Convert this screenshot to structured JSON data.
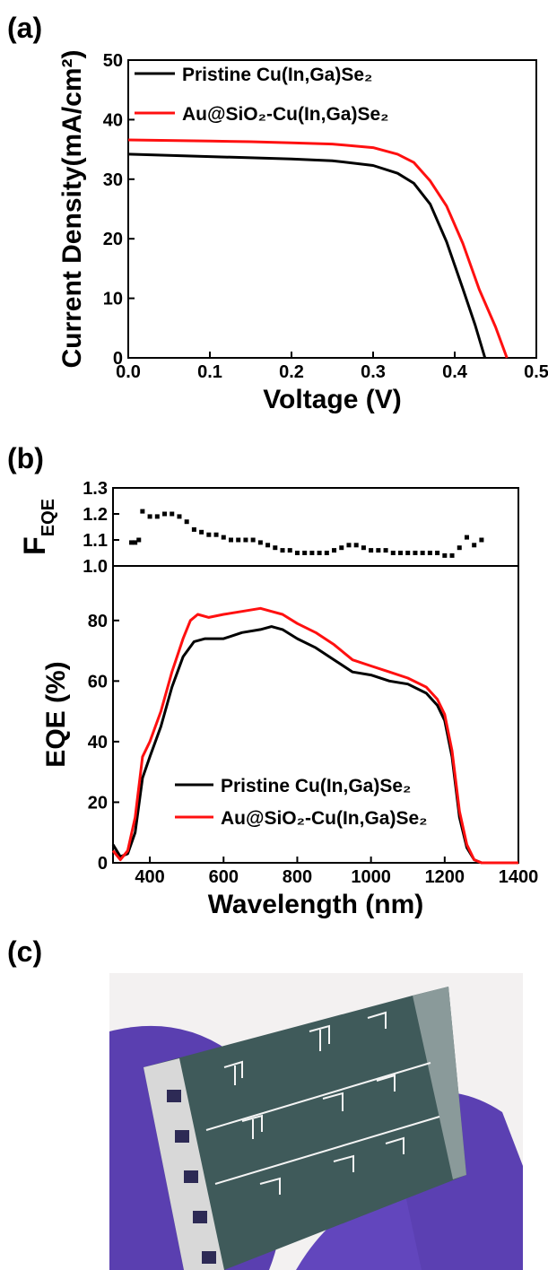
{
  "chart_data": [
    {
      "type": "line",
      "label": "(a)",
      "xlabel": "Voltage (V)",
      "ylabel": "Current Density(mA/cm²)",
      "xlim": [
        0,
        0.5
      ],
      "xticks": [
        {
          "value": 0,
          "label": "0.0"
        },
        0.1,
        0.2,
        0.3,
        0.4,
        0.5
      ],
      "ylim": [
        0,
        50
      ],
      "yticks": [
        0,
        10,
        20,
        30,
        40,
        50
      ],
      "series": [
        {
          "name": "Pristine Cu(In,Ga)Se₂",
          "color": "#000000",
          "x": [
            0,
            0.05,
            0.1,
            0.15,
            0.2,
            0.25,
            0.3,
            0.33,
            0.35,
            0.37,
            0.39,
            0.41,
            0.425,
            0.437
          ],
          "values": [
            34.2,
            34.0,
            33.8,
            33.6,
            33.4,
            33.1,
            32.3,
            31.0,
            29.3,
            25.8,
            19.5,
            11.6,
            5.5,
            0
          ]
        },
        {
          "name": "Au@SiO₂-Cu(In,Ga)Se₂",
          "color": "#ff1010",
          "x": [
            0,
            0.05,
            0.1,
            0.15,
            0.2,
            0.25,
            0.3,
            0.33,
            0.35,
            0.37,
            0.39,
            0.41,
            0.43,
            0.45,
            0.464
          ],
          "values": [
            36.6,
            36.5,
            36.4,
            36.3,
            36.1,
            35.9,
            35.3,
            34.2,
            32.8,
            29.7,
            25.5,
            19.2,
            11.5,
            5.2,
            0
          ]
        }
      ]
    },
    {
      "type": "scatter",
      "label": "(b)",
      "ylabel": "F",
      "ylabel_sub": "EQE",
      "xlim": [
        300,
        1400
      ],
      "ylim": [
        1,
        1.3
      ],
      "yticks": [
        {
          "value": 1,
          "label": "1.0"
        },
        1.1,
        1.2,
        1.3
      ],
      "color": "#000000",
      "x": [
        350,
        360,
        370,
        380,
        400,
        420,
        440,
        460,
        480,
        500,
        520,
        540,
        560,
        580,
        600,
        620,
        640,
        660,
        680,
        700,
        720,
        740,
        760,
        780,
        800,
        820,
        840,
        860,
        880,
        900,
        920,
        940,
        960,
        980,
        1000,
        1020,
        1040,
        1060,
        1080,
        1100,
        1120,
        1140,
        1160,
        1180,
        1200,
        1220,
        1240,
        1260,
        1280,
        1300
      ],
      "values": [
        1.09,
        1.09,
        1.1,
        1.21,
        1.19,
        1.19,
        1.2,
        1.2,
        1.19,
        1.17,
        1.14,
        1.13,
        1.12,
        1.12,
        1.11,
        1.1,
        1.1,
        1.1,
        1.1,
        1.09,
        1.08,
        1.07,
        1.06,
        1.06,
        1.05,
        1.05,
        1.05,
        1.05,
        1.05,
        1.06,
        1.07,
        1.08,
        1.08,
        1.07,
        1.06,
        1.06,
        1.06,
        1.05,
        1.05,
        1.05,
        1.05,
        1.05,
        1.05,
        1.05,
        1.04,
        1.04,
        1.07,
        1.11,
        1.08,
        1.1
      ]
    },
    {
      "type": "line",
      "xlabel": "Wavelength (nm)",
      "ylabel": "EQE (%)",
      "xlim": [
        300,
        1400
      ],
      "xticks": [
        400,
        600,
        800,
        1000,
        1200,
        1400
      ],
      "ylim": [
        0,
        98
      ],
      "yticks": [
        0,
        20,
        40,
        60,
        80
      ],
      "series": [
        {
          "name": "Pristine Cu(In,Ga)Se₂",
          "color": "#000000",
          "x": [
            300,
            320,
            340,
            360,
            380,
            400,
            430,
            460,
            490,
            520,
            550,
            600,
            650,
            700,
            730,
            760,
            800,
            850,
            900,
            950,
            1000,
            1050,
            1100,
            1150,
            1180,
            1200,
            1220,
            1240,
            1260,
            1280,
            1300,
            1400
          ],
          "values": [
            6,
            2,
            3,
            10,
            28,
            35,
            45,
            58,
            68,
            73,
            74,
            74,
            76,
            77,
            78,
            77,
            74,
            71,
            67,
            63,
            62,
            60,
            59,
            56,
            52,
            47,
            35,
            15,
            5,
            1,
            0,
            0
          ]
        },
        {
          "name": "Au@SiO₂-Cu(In,Ga)Se₂",
          "color": "#ff1010",
          "x": [
            300,
            320,
            340,
            360,
            380,
            400,
            430,
            460,
            490,
            510,
            530,
            560,
            600,
            650,
            700,
            730,
            760,
            800,
            850,
            900,
            950,
            1000,
            1050,
            1100,
            1150,
            1180,
            1200,
            1220,
            1240,
            1260,
            1280,
            1300,
            1400
          ],
          "values": [
            4,
            1,
            4,
            15,
            35,
            40,
            50,
            63,
            74,
            80,
            82,
            81,
            82,
            83,
            84,
            83,
            82,
            79,
            76,
            72,
            67,
            65,
            63,
            61,
            58,
            54,
            49,
            37,
            17,
            6,
            1,
            0,
            0
          ]
        }
      ]
    }
  ],
  "photo": {
    "label": "(c)"
  }
}
